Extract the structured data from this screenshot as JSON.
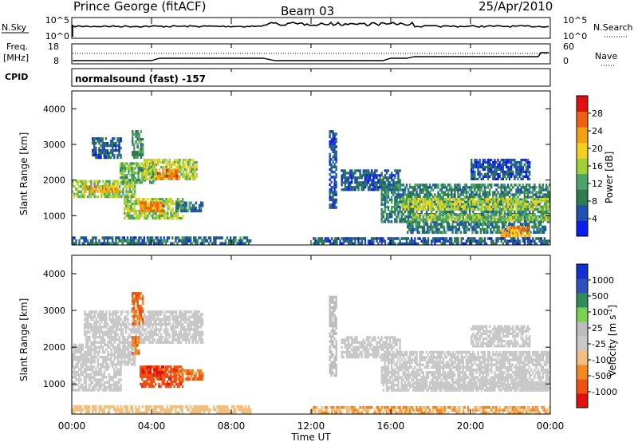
{
  "header": {
    "station": "Prince George (fitACF)",
    "beam": "Beam 03",
    "date": "25/Apr/2010"
  },
  "panels": {
    "nsky": {
      "left_label": "N.Sky",
      "right_label": "N.Search",
      "ticks_left": [
        "10^5",
        "10^0"
      ],
      "ticks_right": [
        "10^5",
        "10^0"
      ]
    },
    "freq": {
      "left_label_1": "Freq.",
      "left_label_2": "[MHz]",
      "ticks_left": [
        "18",
        "8"
      ],
      "right_label": "Nave",
      "ticks_right": [
        "60",
        "0"
      ]
    },
    "cpid": {
      "left_label": "CPID",
      "text": "normalsound (fast) -157"
    }
  },
  "colors": {
    "power": [
      "#0b1cf0",
      "#2050b0",
      "#2f7a4f",
      "#49a36b",
      "#9fd038",
      "#f0d020",
      "#f0a010",
      "#f06010",
      "#e01010"
    ],
    "velocity": [
      "#e01010",
      "#f05010",
      "#f08a20",
      "#f0c080",
      "#c8c8c8",
      "#bdbdbd",
      "#7ad050",
      "#2f8a5a",
      "#3050c0",
      "#1030d0"
    ]
  },
  "chart_data": [
    {
      "type": "heatmap",
      "title": "Power",
      "ylabel": "Slant Range [km]",
      "ylim": [
        180,
        4500
      ],
      "yticks": [
        "1000",
        "2000",
        "3000",
        "4000"
      ],
      "xlim": [
        0,
        24
      ],
      "colorbar_label": "Power [dB]",
      "colorbar_ticks": [
        "4",
        "8",
        "12",
        "16",
        "20",
        "24",
        "28"
      ],
      "colorbar_range": [
        0,
        30
      ],
      "regions": [
        {
          "t0": 0.0,
          "t1": 3.2,
          "r0": 1500,
          "r1": 2000,
          "v": 14
        },
        {
          "t0": 0.6,
          "t1": 2.4,
          "r0": 1650,
          "r1": 1850,
          "v": 21
        },
        {
          "t0": 1.0,
          "t1": 2.5,
          "r0": 2600,
          "r1": 3200,
          "v": 6
        },
        {
          "t0": 2.4,
          "t1": 4.2,
          "r0": 1900,
          "r1": 2500,
          "v": 12
        },
        {
          "t0": 3.0,
          "t1": 3.6,
          "r0": 2600,
          "r1": 3400,
          "v": 10
        },
        {
          "t0": 3.6,
          "t1": 6.3,
          "r0": 2000,
          "r1": 2600,
          "v": 16
        },
        {
          "t0": 4.2,
          "t1": 5.4,
          "r0": 2000,
          "r1": 2300,
          "v": 24
        },
        {
          "t0": 2.6,
          "t1": 5.6,
          "r0": 900,
          "r1": 1500,
          "v": 15
        },
        {
          "t0": 3.4,
          "t1": 4.6,
          "r0": 1100,
          "r1": 1400,
          "v": 23
        },
        {
          "t0": 5.2,
          "t1": 6.6,
          "r0": 1100,
          "r1": 1400,
          "v": 8
        },
        {
          "t0": 0.0,
          "t1": 9.0,
          "r0": 180,
          "r1": 420,
          "v": 7
        },
        {
          "t0": 12.9,
          "t1": 13.3,
          "r0": 1200,
          "r1": 3400,
          "v": 5
        },
        {
          "t0": 13.5,
          "t1": 16.5,
          "r0": 1700,
          "r1": 2300,
          "v": 6
        },
        {
          "t0": 15.5,
          "t1": 24.0,
          "r0": 800,
          "r1": 1900,
          "v": 9
        },
        {
          "t0": 16.5,
          "t1": 24.0,
          "r0": 1150,
          "r1": 1500,
          "v": 16
        },
        {
          "t0": 17.0,
          "t1": 24.0,
          "r0": 850,
          "r1": 1050,
          "v": 14
        },
        {
          "t0": 16.8,
          "t1": 23.8,
          "r0": 500,
          "r1": 800,
          "v": 8
        },
        {
          "t0": 21.5,
          "t1": 23.0,
          "r0": 400,
          "r1": 700,
          "v": 22
        },
        {
          "t0": 12.0,
          "t1": 24.0,
          "r0": 180,
          "r1": 400,
          "v": 6
        },
        {
          "t0": 20.0,
          "t1": 23.0,
          "r0": 2000,
          "r1": 2600,
          "v": 5
        }
      ]
    },
    {
      "type": "heatmap",
      "title": "Velocity",
      "ylabel": "Slant Range [km]",
      "ylim": [
        180,
        4500
      ],
      "yticks": [
        "1000",
        "2000",
        "3000",
        "4000"
      ],
      "xlim": [
        0,
        24
      ],
      "xlabel": "Time UT",
      "xticks": [
        "00:00",
        "04:00",
        "08:00",
        "12:00",
        "16:00",
        "20:00",
        "00:00"
      ],
      "colorbar_label": "Velocity [m s-1]",
      "colorbar_ticks": [
        "-1000",
        "-500",
        "-100",
        "-25",
        "25",
        "100",
        "500",
        "1000"
      ],
      "regions": [
        {
          "t0": 0.0,
          "t1": 3.2,
          "r0": 1500,
          "r1": 2100,
          "v": 0
        },
        {
          "t0": 0.6,
          "t1": 6.6,
          "r0": 2100,
          "r1": 3000,
          "v": 0
        },
        {
          "t0": 0.0,
          "t1": 2.5,
          "r0": 800,
          "r1": 1500,
          "v": 0
        },
        {
          "t0": 3.0,
          "t1": 3.6,
          "r0": 2600,
          "r1": 3500,
          "v": -300
        },
        {
          "t0": 3.0,
          "t1": 3.4,
          "r0": 1800,
          "r1": 2300,
          "v": -300
        },
        {
          "t0": 3.4,
          "t1": 5.6,
          "r0": 900,
          "r1": 1500,
          "v": -600
        },
        {
          "t0": 3.5,
          "t1": 4.8,
          "r0": 1200,
          "r1": 1500,
          "v": -700
        },
        {
          "t0": 5.2,
          "t1": 6.6,
          "r0": 1100,
          "r1": 1400,
          "v": -300
        },
        {
          "t0": 0.0,
          "t1": 9.0,
          "r0": 180,
          "r1": 420,
          "v": -50
        },
        {
          "t0": 12.9,
          "t1": 13.3,
          "r0": 1200,
          "r1": 3400,
          "v": 50
        },
        {
          "t0": 13.5,
          "t1": 16.5,
          "r0": 1700,
          "r1": 2300,
          "v": 0
        },
        {
          "t0": 15.5,
          "t1": 24.0,
          "r0": 800,
          "r1": 1900,
          "v": 0
        },
        {
          "t0": 17.0,
          "t1": 24.0,
          "r0": 850,
          "r1": 1050,
          "v": 0
        },
        {
          "t0": 12.0,
          "t1": 24.0,
          "r0": 180,
          "r1": 400,
          "v": -60
        },
        {
          "t0": 20.0,
          "t1": 23.0,
          "r0": 2000,
          "r1": 2600,
          "v": 0
        }
      ]
    }
  ]
}
